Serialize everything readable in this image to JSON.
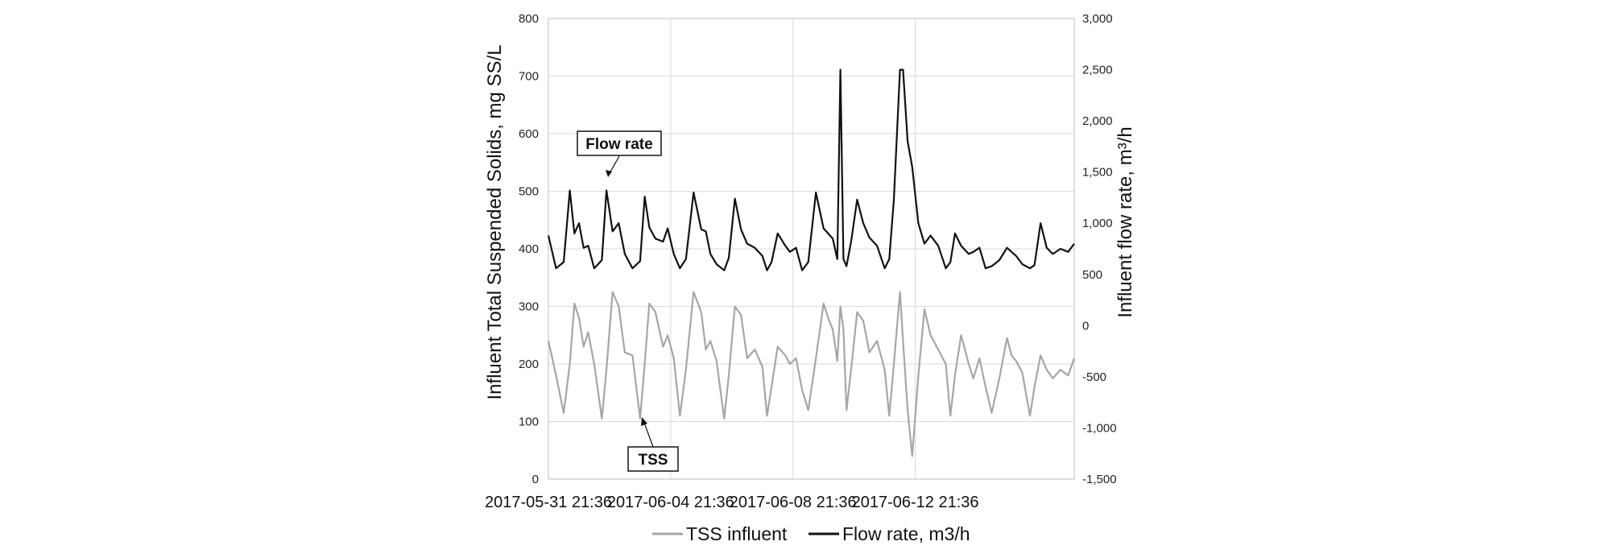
{
  "chart_data": {
    "type": "line",
    "title": "",
    "x_tick_labels": [
      "2017-05-31 21:36",
      "2017-06-04 21:36",
      "2017-06-08 21:36",
      "2017-06-12 21:36"
    ],
    "x_range_days": [
      0,
      17.2
    ],
    "ylabel_left": "Influent Total Suspended Solids, mg SS/L",
    "ylabel_right": "Influent flow rate, m³/h",
    "ylim_left": [
      0,
      800
    ],
    "ylim_right": [
      -1500,
      3000
    ],
    "yticks_left": [
      "0",
      "100",
      "200",
      "300",
      "400",
      "500",
      "600",
      "700",
      "800"
    ],
    "yticks_right": [
      "-1,500",
      "-1,000",
      "-500",
      "0",
      "500",
      "1,000",
      "1,500",
      "2,000",
      "2,500",
      "3,000"
    ],
    "grid": true,
    "legend_position": "bottom-center",
    "series": [
      {
        "name": "TSS influent",
        "axis": "left",
        "color": "#a6a6a6",
        "x": [
          0,
          0.25,
          0.5,
          0.7,
          0.85,
          1.0,
          1.15,
          1.3,
          1.5,
          1.75,
          1.9,
          2.1,
          2.3,
          2.5,
          2.75,
          3.0,
          3.15,
          3.3,
          3.5,
          3.75,
          3.9,
          4.1,
          4.3,
          4.5,
          4.75,
          5.0,
          5.15,
          5.3,
          5.5,
          5.75,
          5.9,
          6.1,
          6.3,
          6.5,
          6.75,
          7.0,
          7.15,
          7.3,
          7.5,
          7.75,
          7.9,
          8.1,
          8.3,
          8.5,
          8.75,
          9.0,
          9.15,
          9.3,
          9.45,
          9.55,
          9.65,
          9.75,
          9.9,
          10.1,
          10.3,
          10.5,
          10.75,
          11.0,
          11.15,
          11.3,
          11.5,
          11.6,
          11.75,
          11.9,
          12.1,
          12.3,
          12.5,
          12.75,
          13.0,
          13.15,
          13.3,
          13.5,
          13.75,
          13.9,
          14.1,
          14.3,
          14.5,
          14.75,
          15.0,
          15.15,
          15.3,
          15.5,
          15.75,
          15.9,
          16.1,
          16.3,
          16.5,
          16.75,
          17.0,
          17.2
        ],
        "values": [
          240,
          180,
          115,
          200,
          305,
          280,
          230,
          255,
          200,
          105,
          190,
          325,
          300,
          220,
          215,
          105,
          200,
          305,
          290,
          230,
          250,
          210,
          110,
          190,
          325,
          290,
          225,
          240,
          205,
          105,
          180,
          300,
          285,
          210,
          225,
          195,
          110,
          160,
          230,
          215,
          200,
          210,
          155,
          120,
          210,
          305,
          280,
          260,
          205,
          300,
          260,
          120,
          190,
          290,
          275,
          220,
          240,
          190,
          110,
          200,
          325,
          240,
          120,
          40,
          180,
          295,
          250,
          225,
          200,
          110,
          180,
          250,
          200,
          175,
          210,
          160,
          115,
          175,
          245,
          215,
          205,
          185,
          110,
          160,
          215,
          190,
          175,
          190,
          180,
          210
        ]
      },
      {
        "name": "Flow rate, m3/h",
        "axis": "right",
        "color": "#111111",
        "x": [
          0,
          0.25,
          0.5,
          0.7,
          0.85,
          1.0,
          1.15,
          1.3,
          1.5,
          1.75,
          1.9,
          2.1,
          2.3,
          2.5,
          2.75,
          3.0,
          3.15,
          3.3,
          3.5,
          3.75,
          3.9,
          4.1,
          4.3,
          4.5,
          4.75,
          5.0,
          5.15,
          5.3,
          5.5,
          5.75,
          5.9,
          6.1,
          6.3,
          6.5,
          6.75,
          7.0,
          7.15,
          7.3,
          7.5,
          7.75,
          7.9,
          8.1,
          8.3,
          8.5,
          8.75,
          9.0,
          9.15,
          9.3,
          9.45,
          9.55,
          9.65,
          9.75,
          9.9,
          10.1,
          10.3,
          10.5,
          10.75,
          11.0,
          11.15,
          11.3,
          11.5,
          11.6,
          11.75,
          11.9,
          12.1,
          12.3,
          12.5,
          12.75,
          13.0,
          13.15,
          13.3,
          13.5,
          13.75,
          13.9,
          14.1,
          14.3,
          14.5,
          14.75,
          15.0,
          15.15,
          15.3,
          15.5,
          15.75,
          15.9,
          16.1,
          16.3,
          16.5,
          16.75,
          17.0,
          17.2
        ],
        "values": [
          880,
          560,
          620,
          1320,
          900,
          1000,
          760,
          780,
          560,
          640,
          1320,
          920,
          1000,
          700,
          560,
          630,
          1260,
          960,
          850,
          820,
          950,
          700,
          560,
          650,
          1300,
          940,
          920,
          700,
          600,
          540,
          660,
          1240,
          940,
          800,
          760,
          680,
          540,
          620,
          900,
          780,
          720,
          760,
          540,
          620,
          1300,
          950,
          900,
          850,
          650,
          2500,
          650,
          580,
          820,
          1230,
          1000,
          860,
          780,
          560,
          650,
          1230,
          2500,
          2500,
          1800,
          1550,
          1000,
          800,
          880,
          780,
          560,
          620,
          900,
          780,
          700,
          720,
          760,
          560,
          580,
          640,
          760,
          720,
          680,
          600,
          560,
          590,
          1000,
          760,
          700,
          750,
          720,
          800
        ]
      }
    ],
    "annotations": [
      {
        "text": "Flow rate",
        "series": "Flow rate, m3/h"
      },
      {
        "text": "TSS",
        "series": "TSS influent"
      }
    ]
  }
}
